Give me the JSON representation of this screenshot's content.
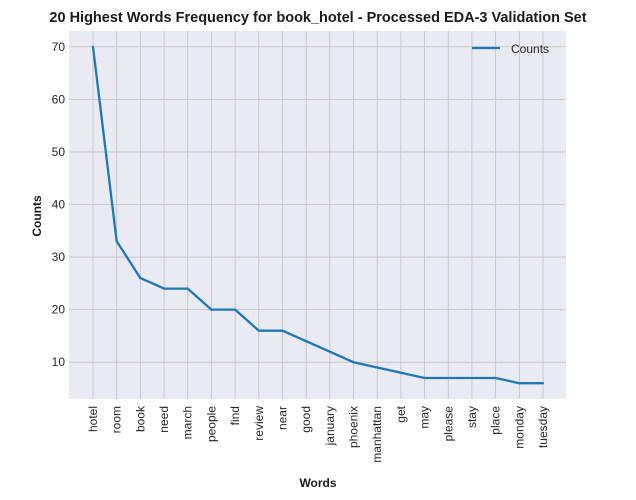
{
  "chart_data": {
    "type": "line",
    "title": "20 Highest Words Frequency for book_hotel - Processed EDA-3 Validation Set",
    "xlabel": "Words",
    "ylabel": "Counts",
    "categories": [
      "hotel",
      "room",
      "book",
      "need",
      "march",
      "people",
      "find",
      "review",
      "near",
      "good",
      "january",
      "phoenix",
      "manhattan",
      "get",
      "may",
      "please",
      "stay",
      "place",
      "monday",
      "tuesday"
    ],
    "series": [
      {
        "name": "Counts",
        "values": [
          70,
          33,
          26,
          24,
          24,
          20,
          20,
          16,
          16,
          14,
          12,
          10,
          9,
          8,
          7,
          7,
          7,
          7,
          6,
          6
        ]
      }
    ],
    "ylim": [
      3,
      73
    ],
    "yticks": [
      10,
      20,
      30,
      40,
      50,
      60,
      70
    ],
    "grid": true,
    "legend": "top-right",
    "colors": {
      "line": "#1f77b4",
      "background": "#eaeaf2",
      "grid": "#c0c0c0"
    }
  }
}
